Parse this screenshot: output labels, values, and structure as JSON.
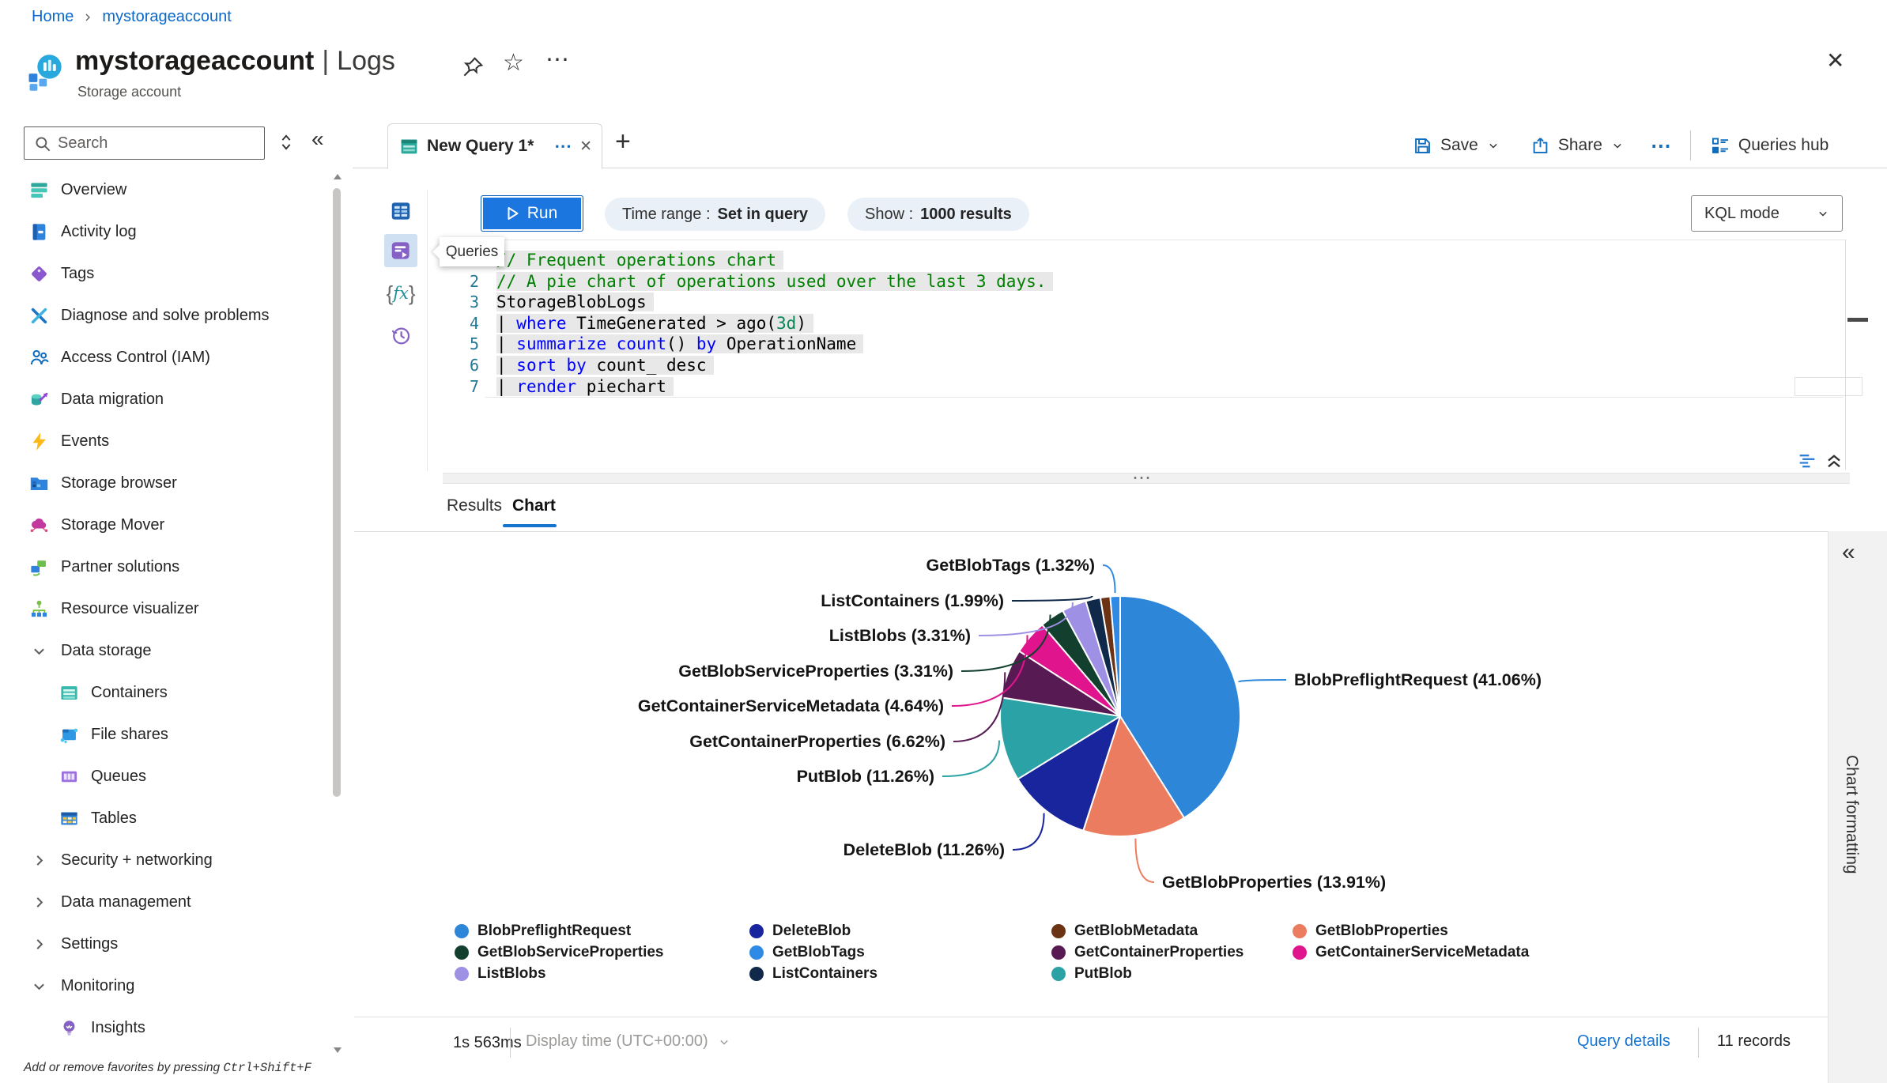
{
  "icons": {
    "ellipsis": "⋯",
    "close": "✕",
    "plus": "+",
    "collapse_left": "«",
    "star": "☆",
    "splitter_dots": "⋯",
    "fx": {
      "open": "{",
      "label": "fx",
      "close": "}"
    }
  },
  "breadcrumb": {
    "home": "Home",
    "current": "mystorageaccount"
  },
  "header": {
    "title": "mystorageaccount",
    "separator": "|",
    "section": "Logs",
    "subtitle": "Storage account"
  },
  "sidebar": {
    "search_placeholder": "Search",
    "items": [
      {
        "label": "Overview",
        "icon": "overview",
        "kind": "item"
      },
      {
        "label": "Activity log",
        "icon": "activity",
        "kind": "item"
      },
      {
        "label": "Tags",
        "icon": "tags",
        "kind": "item"
      },
      {
        "label": "Diagnose and solve problems",
        "icon": "diagnose",
        "kind": "item"
      },
      {
        "label": "Access Control (IAM)",
        "icon": "iam",
        "kind": "item"
      },
      {
        "label": "Data migration",
        "icon": "migration",
        "kind": "item"
      },
      {
        "label": "Events",
        "icon": "events",
        "kind": "item"
      },
      {
        "label": "Storage browser",
        "icon": "browser",
        "kind": "item"
      },
      {
        "label": "Storage Mover",
        "icon": "mover",
        "kind": "item"
      },
      {
        "label": "Partner solutions",
        "icon": "partner",
        "kind": "item"
      },
      {
        "label": "Resource visualizer",
        "icon": "visualizer",
        "kind": "item"
      },
      {
        "label": "Data storage",
        "kind": "group",
        "state": "expanded"
      },
      {
        "label": "Containers",
        "icon": "containers",
        "kind": "sub"
      },
      {
        "label": "File shares",
        "icon": "fileshares",
        "kind": "sub"
      },
      {
        "label": "Queues",
        "icon": "queues",
        "kind": "sub"
      },
      {
        "label": "Tables",
        "icon": "tables",
        "kind": "sub"
      },
      {
        "label": "Security + networking",
        "kind": "group",
        "state": "collapsed"
      },
      {
        "label": "Data management",
        "kind": "group",
        "state": "collapsed"
      },
      {
        "label": "Settings",
        "kind": "group",
        "state": "collapsed"
      },
      {
        "label": "Monitoring",
        "kind": "group",
        "state": "expanded"
      },
      {
        "label": "Insights",
        "icon": "insights",
        "kind": "sub"
      }
    ],
    "footer_hint_prefix": "Add or remove favorites by pressing ",
    "footer_hint_keys": "Ctrl+Shift+F"
  },
  "tabs": {
    "active_label": "New Query 1*"
  },
  "actions": {
    "save": "Save",
    "share": "Share",
    "queries_hub": "Queries hub"
  },
  "toolbar": {
    "run": "Run",
    "time_range_label": "Time range :",
    "time_range_value": "Set in query",
    "show_label": "Show :",
    "show_value": "1000 results",
    "mode": "KQL mode"
  },
  "editor": {
    "tooltip": "Queries",
    "lines": [
      {
        "n": 1,
        "seg": [
          [
            "// Frequent operations chart",
            "c"
          ]
        ]
      },
      {
        "n": 2,
        "seg": [
          [
            "// A pie chart of operations used over the last 3 days.",
            "c"
          ]
        ]
      },
      {
        "n": 3,
        "seg": [
          [
            "StorageBlobLogs",
            "p"
          ]
        ]
      },
      {
        "n": 4,
        "seg": [
          [
            "| ",
            "p"
          ],
          [
            "where",
            "k"
          ],
          [
            " TimeGenerated > ago(",
            "p"
          ],
          [
            "3d",
            "l"
          ],
          [
            ")",
            "p"
          ]
        ]
      },
      {
        "n": 5,
        "seg": [
          [
            "| ",
            "p"
          ],
          [
            "summarize",
            "k"
          ],
          [
            " ",
            "p"
          ],
          [
            "count",
            "k"
          ],
          [
            "() ",
            "p"
          ],
          [
            "by",
            "k"
          ],
          [
            " OperationName",
            "p"
          ]
        ]
      },
      {
        "n": 6,
        "seg": [
          [
            "| ",
            "p"
          ],
          [
            "sort",
            "k"
          ],
          [
            " ",
            "p"
          ],
          [
            "by",
            "k"
          ],
          [
            " count_ desc",
            "p"
          ]
        ]
      },
      {
        "n": 7,
        "seg": [
          [
            "| ",
            "p"
          ],
          [
            "render",
            "k"
          ],
          [
            " piechart",
            "p"
          ]
        ]
      }
    ]
  },
  "results": {
    "tab_results": "Results",
    "tab_chart": "Chart"
  },
  "chart_data": {
    "type": "pie",
    "title": "",
    "value_field": "count_",
    "category_field": "OperationName",
    "slices": [
      {
        "name": "BlobPreflightRequest",
        "pct": 41.06,
        "color": "#2e86d9",
        "labeled": true
      },
      {
        "name": "GetBlobProperties",
        "pct": 13.91,
        "color": "#ec7c5f",
        "labeled": true
      },
      {
        "name": "DeleteBlob",
        "pct": 11.26,
        "color": "#18259c",
        "labeled": true
      },
      {
        "name": "PutBlob",
        "pct": 11.26,
        "color": "#2ba3a6",
        "labeled": true
      },
      {
        "name": "GetContainerProperties",
        "pct": 6.62,
        "color": "#571a53",
        "labeled": true
      },
      {
        "name": "GetContainerServiceMetadata",
        "pct": 4.64,
        "color": "#e0148c",
        "labeled": true
      },
      {
        "name": "GetBlobServiceProperties",
        "pct": 3.31,
        "color": "#123f2e",
        "labeled": true
      },
      {
        "name": "ListBlobs",
        "pct": 3.31,
        "color": "#9e90e4",
        "labeled": true
      },
      {
        "name": "ListContainers",
        "pct": 1.99,
        "color": "#10294a",
        "labeled": true
      },
      {
        "name": "GetBlobMetadata",
        "pct": 1.32,
        "color": "#6b3314",
        "labeled": false
      },
      {
        "name": "GetBlobTags",
        "pct": 1.32,
        "color": "#2f8ae5",
        "labeled": true
      }
    ],
    "legend_columns": [
      [
        "BlobPreflightRequest",
        "GetBlobServiceProperties",
        "ListBlobs"
      ],
      [
        "DeleteBlob",
        "GetBlobTags",
        "ListContainers"
      ],
      [
        "GetBlobMetadata",
        "GetContainerProperties",
        "PutBlob"
      ],
      [
        "GetBlobProperties",
        "GetContainerServiceMetadata"
      ]
    ],
    "legend_position": "bottom"
  },
  "status": {
    "duration": "1s 563ms",
    "display_time": "Display time (UTC+00:00)",
    "query_details": "Query details",
    "records": "11 records"
  },
  "right_panel": {
    "title": "Chart formatting"
  }
}
